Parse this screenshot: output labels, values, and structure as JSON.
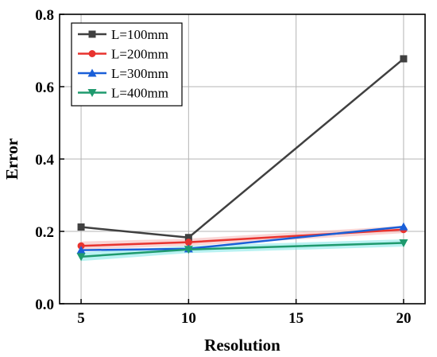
{
  "chart_data": {
    "type": "line",
    "title": "",
    "xlabel": "Resolution",
    "ylabel": "Error",
    "x": [
      5,
      10,
      20
    ],
    "xlim": [
      4,
      21
    ],
    "ylim": [
      0.0,
      0.8
    ],
    "xticks": [
      5,
      10,
      15,
      20
    ],
    "yticks": [
      0.0,
      0.2,
      0.4,
      0.6,
      0.8
    ],
    "xtick_labels": [
      "5",
      "10",
      "15",
      "20"
    ],
    "ytick_labels": [
      "0.0",
      "0.2",
      "0.4",
      "0.6",
      "0.8"
    ],
    "grid": true,
    "legend_position": "top-left",
    "series": [
      {
        "name": "L=100mm",
        "values": [
          0.212,
          0.183,
          0.677
        ],
        "color": "#404040",
        "marker": "square"
      },
      {
        "name": "L=200mm",
        "values": [
          0.16,
          0.17,
          0.205
        ],
        "color": "#e8332f",
        "marker": "circle"
      },
      {
        "name": "L=300mm",
        "values": [
          0.148,
          0.152,
          0.213
        ],
        "color": "#1a5fd8",
        "marker": "triangle-up"
      },
      {
        "name": "L=400mm",
        "values": [
          0.13,
          0.15,
          0.168
        ],
        "color": "#1f9a6e",
        "marker": "triangle-down"
      }
    ],
    "bands": [
      {
        "series": "L=200mm",
        "lower": [
          0.15,
          0.16,
          0.195
        ],
        "upper": [
          0.172,
          0.18,
          0.215
        ],
        "color": "#f4b4b4"
      },
      {
        "series": "L=400mm",
        "lower": [
          0.118,
          0.14,
          0.158
        ],
        "upper": [
          0.142,
          0.16,
          0.178
        ],
        "color": "#7fe8e8"
      }
    ]
  }
}
